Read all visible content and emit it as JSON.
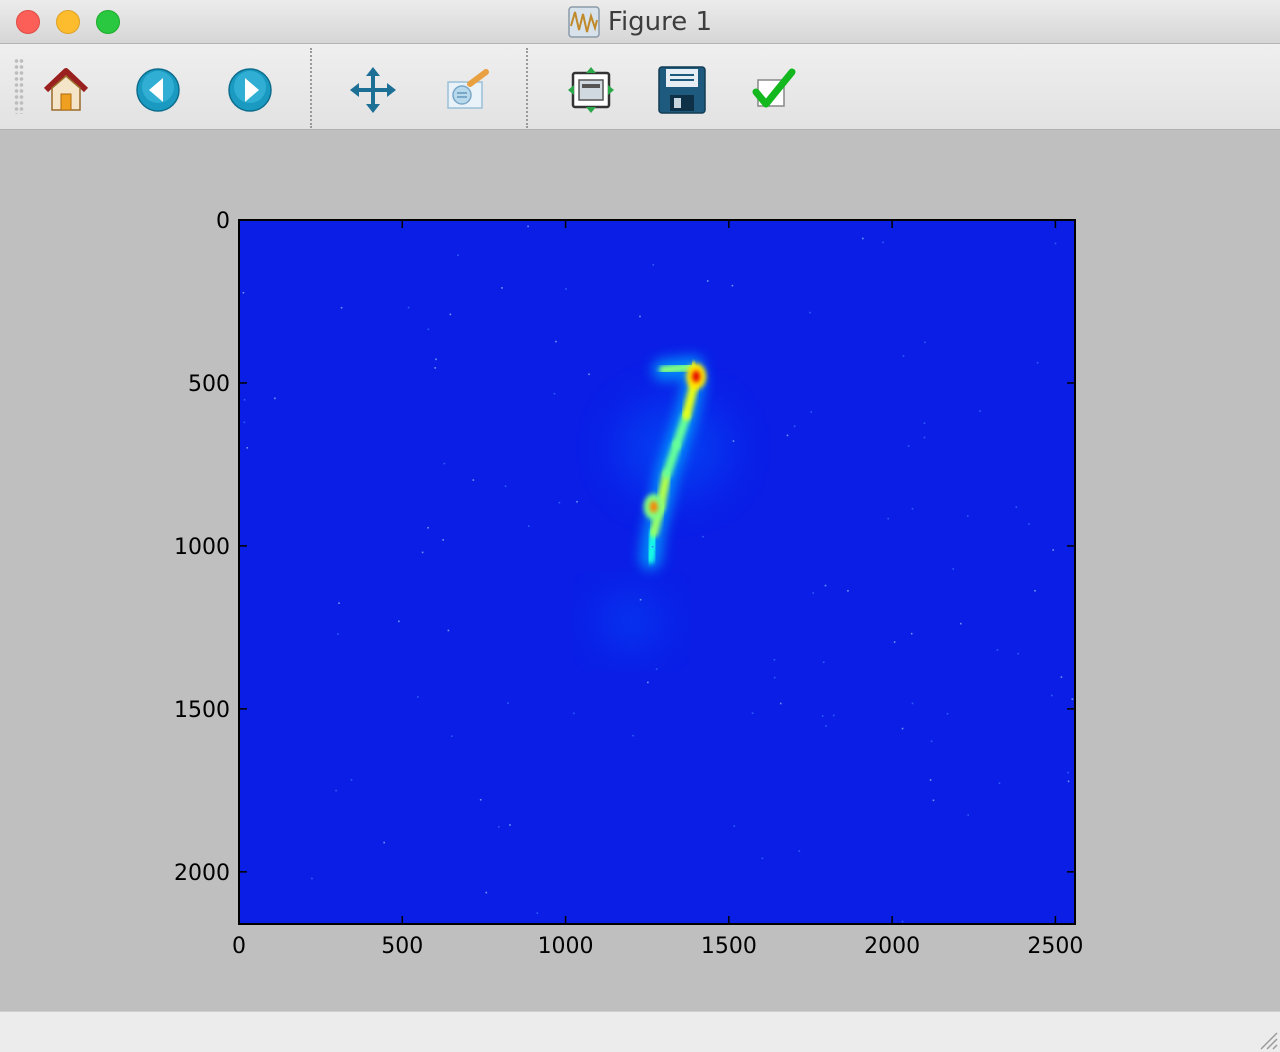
{
  "window": {
    "title": "Figure 1"
  },
  "toolbar": {
    "buttons": [
      {
        "name": "home-button",
        "icon": "home-icon"
      },
      {
        "name": "back-button",
        "icon": "arrow-left-icon"
      },
      {
        "name": "forward-button",
        "icon": "arrow-right-icon"
      },
      {
        "name": "pan-button",
        "icon": "move-arrows-icon"
      },
      {
        "name": "zoom-button",
        "icon": "zoom-rect-icon"
      },
      {
        "name": "subplots-button",
        "icon": "subplots-config-icon"
      },
      {
        "name": "save-button",
        "icon": "floppy-disk-icon"
      },
      {
        "name": "edit-parameters-button",
        "icon": "checkmark-icon"
      }
    ]
  },
  "chart_data": {
    "type": "heatmap",
    "title": "",
    "xlabel": "",
    "ylabel": "",
    "xlim": [
      0,
      2560
    ],
    "ylim": [
      2160,
      0
    ],
    "y_inverted": true,
    "x_ticks": [
      0,
      500,
      1000,
      1500,
      2000,
      2500
    ],
    "y_ticks": [
      0,
      500,
      1000,
      1500,
      2000
    ],
    "x_tick_labels": [
      "0",
      "500",
      "1000",
      "1500",
      "2000",
      "2500"
    ],
    "y_tick_labels": [
      "0",
      "500",
      "1000",
      "1500",
      "2000"
    ],
    "colormap": "jet",
    "background_color": "#0a1ee6",
    "grid": false,
    "features": {
      "bright_streak": [
        {
          "x": 1260,
          "y": 1040,
          "intensity": 0.3
        },
        {
          "x": 1270,
          "y": 960,
          "intensity": 0.4
        },
        {
          "x": 1290,
          "y": 880,
          "intensity": 0.55
        },
        {
          "x": 1310,
          "y": 780,
          "intensity": 0.45
        },
        {
          "x": 1340,
          "y": 690,
          "intensity": 0.4
        },
        {
          "x": 1370,
          "y": 600,
          "intensity": 0.45
        },
        {
          "x": 1395,
          "y": 500,
          "intensity": 0.65
        },
        {
          "x": 1390,
          "y": 450,
          "intensity": 0.5
        },
        {
          "x": 1300,
          "y": 460,
          "intensity": 0.4
        }
      ],
      "hot_spots": [
        {
          "x": 1400,
          "y": 480,
          "intensity": 0.9
        },
        {
          "x": 1270,
          "y": 880,
          "intensity": 0.75
        }
      ],
      "diffuse_glow": [
        {
          "x": 1200,
          "y": 1230,
          "radius": 90
        },
        {
          "x": 1330,
          "y": 700,
          "radius": 170
        }
      ]
    }
  }
}
